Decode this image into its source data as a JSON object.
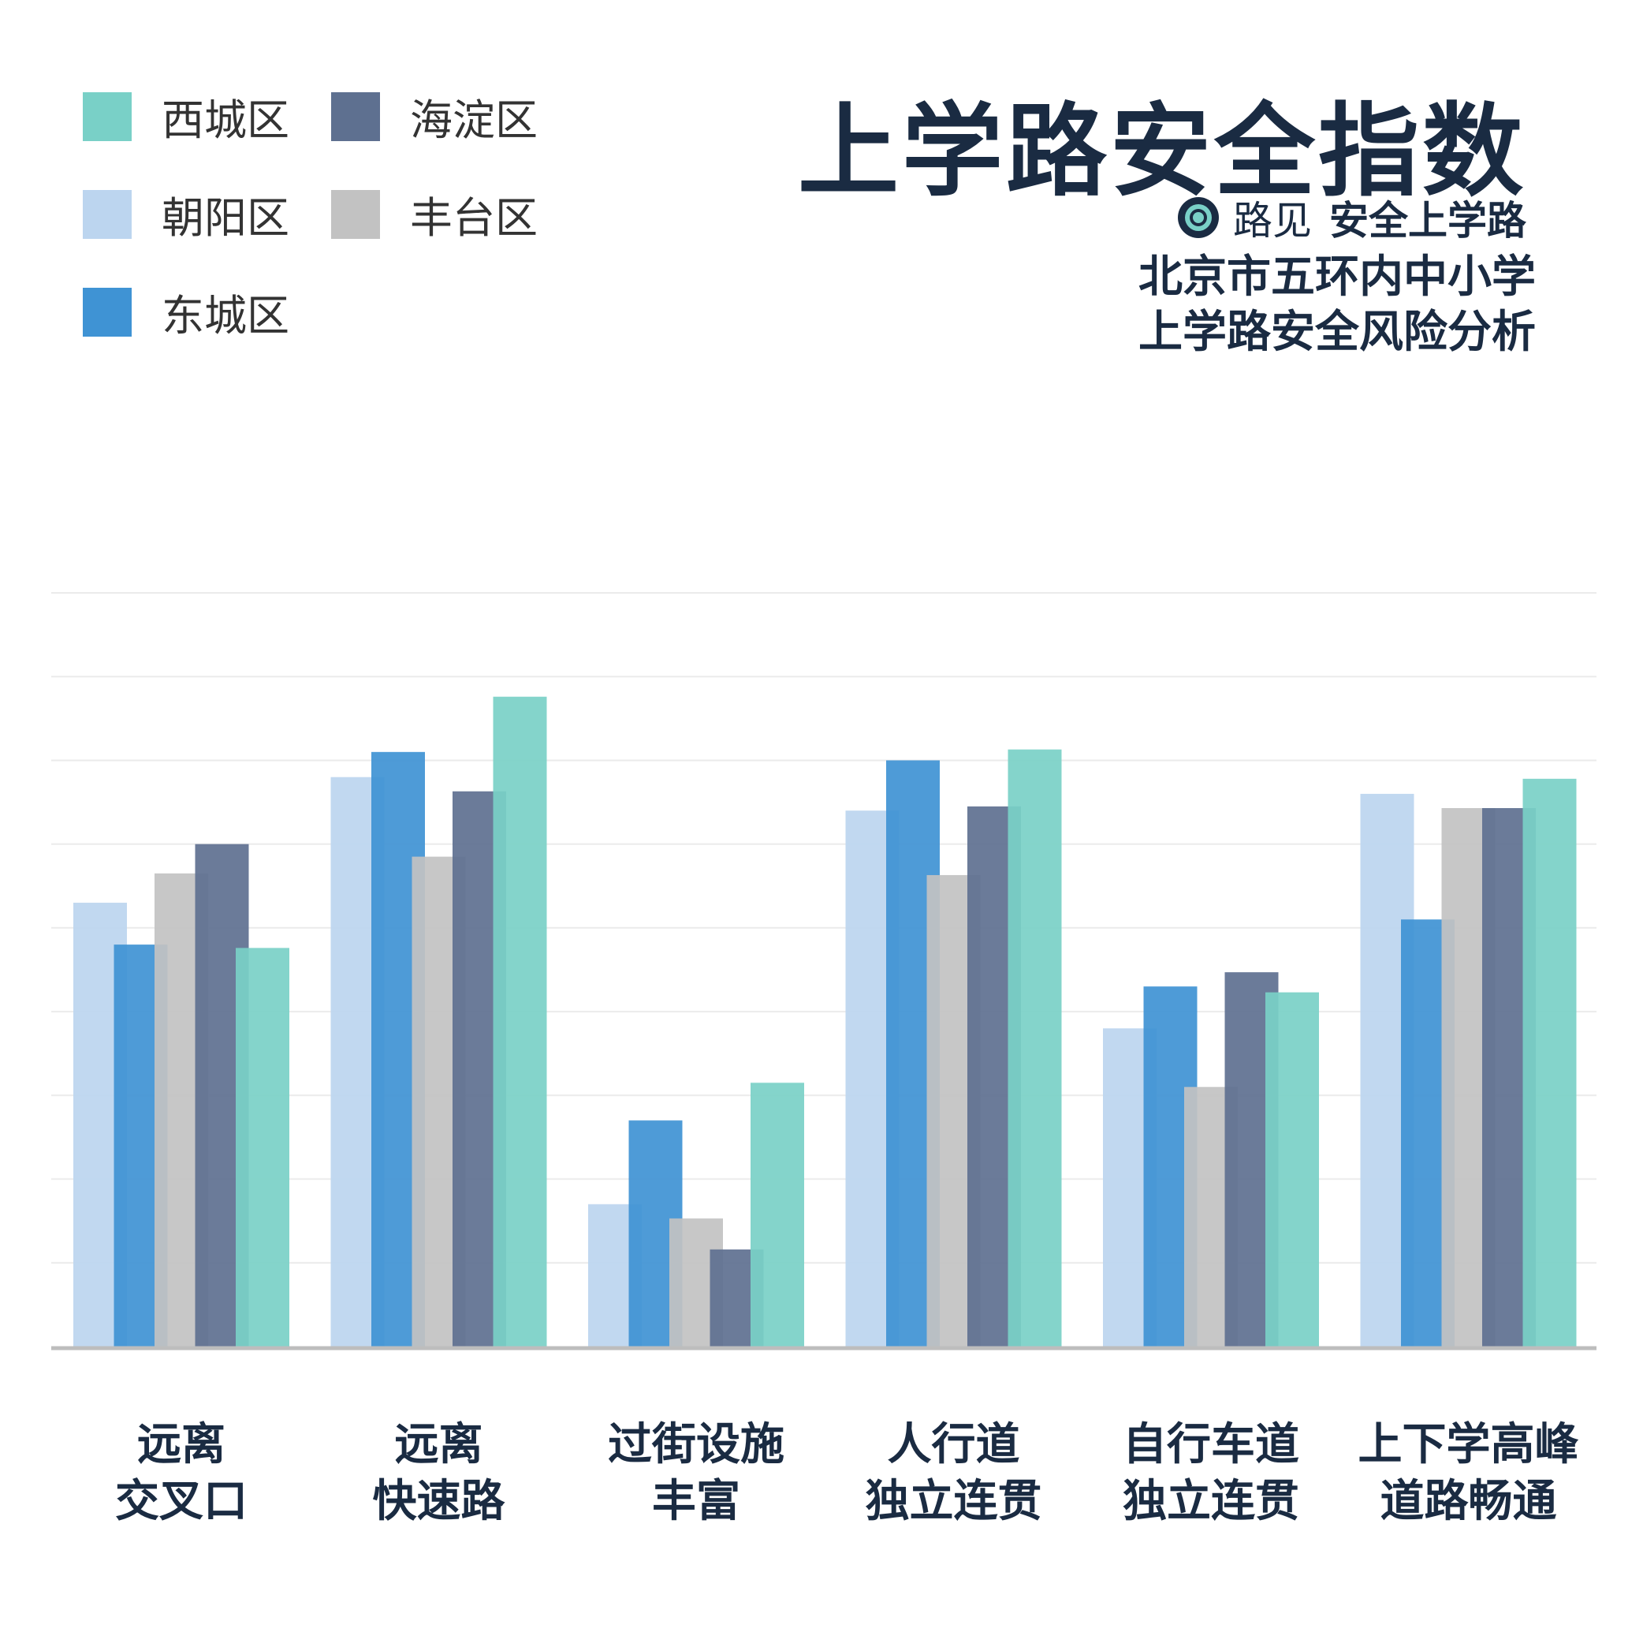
{
  "title": "上学路安全指数",
  "brand": {
    "name": "路见",
    "slogan": "安全上学路",
    "icon": "ring-logo-icon"
  },
  "subtitle_lines": [
    "北京市五环内中小学",
    "上学路安全风险分析"
  ],
  "colors": {
    "西城区": "#79d0c7",
    "海淀区": "#5e7090",
    "朝阳区": "#bcd5ef",
    "丰台区": "#c2c2c2",
    "东城区": "#3f93d4",
    "title": "#1a2b42",
    "grid": "#ebebeb",
    "axis": "#bdbdbd"
  },
  "legend": [
    {
      "label": "西城区",
      "color": "#79d0c7"
    },
    {
      "label": "海淀区",
      "color": "#5e7090"
    },
    {
      "label": "朝阳区",
      "color": "#bcd5ef"
    },
    {
      "label": "丰台区",
      "color": "#c2c2c2"
    },
    {
      "label": "东城区",
      "color": "#3f93d4"
    }
  ],
  "chart_data": {
    "type": "bar",
    "categories": [
      [
        "远离",
        "交叉口"
      ],
      [
        "远离",
        "快速路"
      ],
      [
        "过街设施",
        "丰富"
      ],
      [
        "人行道",
        "独立连贯"
      ],
      [
        "自行车道",
        "独立连贯"
      ],
      [
        "上下学高峰",
        "道路畅通"
      ]
    ],
    "series": [
      {
        "name": "朝阳区",
        "values": [
          5.3,
          6.8,
          1.7,
          6.4,
          3.8,
          6.6
        ]
      },
      {
        "name": "东城区",
        "values": [
          4.8,
          7.1,
          2.7,
          7.0,
          4.3,
          5.1
        ]
      },
      {
        "name": "丰台区",
        "values": [
          5.65,
          5.85,
          1.53,
          5.63,
          3.1,
          6.43
        ]
      },
      {
        "name": "海淀区",
        "values": [
          6.0,
          6.63,
          1.16,
          6.45,
          4.47,
          6.43
        ]
      },
      {
        "name": "西城区",
        "values": [
          4.76,
          7.76,
          3.15,
          7.13,
          4.23,
          6.78
        ]
      }
    ],
    "ylim": [
      0,
      9
    ],
    "grid": true,
    "legend_position": "top-left"
  }
}
